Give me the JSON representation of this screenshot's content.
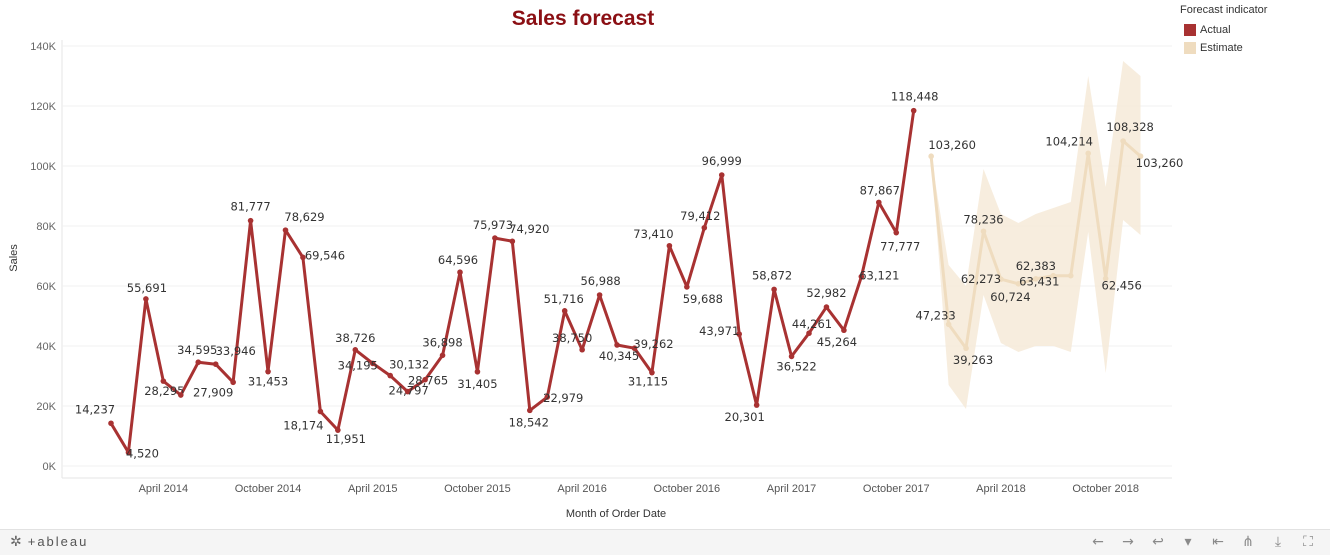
{
  "chart_data": {
    "type": "line",
    "title": "Sales forecast",
    "xlabel": "Month of Order Date",
    "ylabel": "Sales",
    "ylim": [
      0,
      140000
    ],
    "yticks": [
      0,
      20000,
      40000,
      60000,
      80000,
      100000,
      120000,
      140000
    ],
    "ytick_labels": [
      "0K",
      "20K",
      "40K",
      "60K",
      "80K",
      "100K",
      "120K",
      "140K"
    ],
    "xlim": [
      "2013-10",
      "2018-12"
    ],
    "xticks": [
      "2014-04",
      "2014-10",
      "2015-04",
      "2015-10",
      "2016-04",
      "2016-10",
      "2017-04",
      "2017-10",
      "2018-04",
      "2018-10"
    ],
    "xtick_labels": [
      "April 2014",
      "October 2014",
      "April 2015",
      "October 2015",
      "April 2016",
      "October 2016",
      "April 2017",
      "October 2017",
      "April 2018",
      "October 2018"
    ],
    "grid": true,
    "legend": {
      "title": "Forecast indicator",
      "position": "top-right",
      "items": [
        {
          "label": "Actual",
          "color": "#a83232"
        },
        {
          "label": "Estimate",
          "color": "#efdcbf"
        }
      ]
    },
    "series": [
      {
        "name": "Actual",
        "color": "#a83232",
        "points": [
          {
            "x": "2014-01",
            "y": 14237,
            "label": "14,237"
          },
          {
            "x": "2014-02",
            "y": 4520,
            "label": "4,520"
          },
          {
            "x": "2014-03",
            "y": 55691,
            "label": "55,691"
          },
          {
            "x": "2014-04",
            "y": 28295,
            "label": "28,295"
          },
          {
            "x": "2014-05",
            "y": 23648,
            "label": ""
          },
          {
            "x": "2014-06",
            "y": 34595,
            "label": "34,595"
          },
          {
            "x": "2014-07",
            "y": 33946,
            "label": "33,946"
          },
          {
            "x": "2014-08",
            "y": 27909,
            "label": "27,909"
          },
          {
            "x": "2014-09",
            "y": 81777,
            "label": "81,777"
          },
          {
            "x": "2014-10",
            "y": 31453,
            "label": "31,453"
          },
          {
            "x": "2014-11",
            "y": 78629,
            "label": "78,629"
          },
          {
            "x": "2014-12",
            "y": 69546,
            "label": "69,546"
          },
          {
            "x": "2015-01",
            "y": 18174,
            "label": "18,174"
          },
          {
            "x": "2015-02",
            "y": 11951,
            "label": "11,951"
          },
          {
            "x": "2015-03",
            "y": 38726,
            "label": "38,726"
          },
          {
            "x": "2015-04",
            "y": 34195,
            "label": "34,195"
          },
          {
            "x": "2015-05",
            "y": 30132,
            "label": "30,132"
          },
          {
            "x": "2015-06",
            "y": 24797,
            "label": "24,797"
          },
          {
            "x": "2015-07",
            "y": 28765,
            "label": "28,765"
          },
          {
            "x": "2015-08",
            "y": 36898,
            "label": "36,898"
          },
          {
            "x": "2015-09",
            "y": 64596,
            "label": "64,596"
          },
          {
            "x": "2015-10",
            "y": 31405,
            "label": "31,405"
          },
          {
            "x": "2015-11",
            "y": 75973,
            "label": "75,973"
          },
          {
            "x": "2015-12",
            "y": 74920,
            "label": "74,920"
          },
          {
            "x": "2016-01",
            "y": 18542,
            "label": "18,542"
          },
          {
            "x": "2016-02",
            "y": 22979,
            "label": "22,979"
          },
          {
            "x": "2016-03",
            "y": 51716,
            "label": "51,716"
          },
          {
            "x": "2016-04",
            "y": 38750,
            "label": "38,750"
          },
          {
            "x": "2016-05",
            "y": 56988,
            "label": "56,988"
          },
          {
            "x": "2016-06",
            "y": 40345,
            "label": "40,345"
          },
          {
            "x": "2016-07",
            "y": 39262,
            "label": "39,262"
          },
          {
            "x": "2016-08",
            "y": 31115,
            "label": "31,115"
          },
          {
            "x": "2016-09",
            "y": 73410,
            "label": "73,410"
          },
          {
            "x": "2016-10",
            "y": 59688,
            "label": "59,688"
          },
          {
            "x": "2016-11",
            "y": 79412,
            "label": "79,412"
          },
          {
            "x": "2016-12",
            "y": 96999,
            "label": "96,999"
          },
          {
            "x": "2017-01",
            "y": 43971,
            "label": "43,971"
          },
          {
            "x": "2017-02",
            "y": 20301,
            "label": "20,301"
          },
          {
            "x": "2017-03",
            "y": 58872,
            "label": "58,872"
          },
          {
            "x": "2017-04",
            "y": 36522,
            "label": "36,522"
          },
          {
            "x": "2017-05",
            "y": 44261,
            "label": "44,261"
          },
          {
            "x": "2017-06",
            "y": 52982,
            "label": "52,982"
          },
          {
            "x": "2017-07",
            "y": 45264,
            "label": "45,264"
          },
          {
            "x": "2017-08",
            "y": 63121,
            "label": "63,121"
          },
          {
            "x": "2017-09",
            "y": 87867,
            "label": "87,867"
          },
          {
            "x": "2017-10",
            "y": 77777,
            "label": "77,777"
          },
          {
            "x": "2017-11",
            "y": 118448,
            "label": "118,448"
          }
        ]
      },
      {
        "name": "Estimate",
        "color": "#efdcbf",
        "points": [
          {
            "x": "2017-12",
            "y": 103260,
            "label": "103,260",
            "lo": 103260,
            "hi": 103260
          },
          {
            "x": "2018-01",
            "y": 47233,
            "label": "47,233",
            "lo": 27000,
            "hi": 67000
          },
          {
            "x": "2018-02",
            "y": 39263,
            "label": "39,263",
            "lo": 19000,
            "hi": 60000
          },
          {
            "x": "2018-03",
            "y": 78236,
            "label": "78,236",
            "lo": 57000,
            "hi": 99000
          },
          {
            "x": "2018-04",
            "y": 62273,
            "label": "62,273",
            "lo": 41000,
            "hi": 84000
          },
          {
            "x": "2018-05",
            "y": 60724,
            "label": "60,724",
            "lo": 38000,
            "hi": 81000
          },
          {
            "x": "2018-06",
            "y": 62383,
            "label": "62,383",
            "lo": 40000,
            "hi": 84000
          },
          {
            "x": "2018-07",
            "y": 63431,
            "label": "63,431",
            "lo": 40000,
            "hi": 86000
          },
          {
            "x": "2018-08",
            "y": 63431,
            "label": "",
            "lo": 38000,
            "hi": 88000
          },
          {
            "x": "2018-09",
            "y": 104214,
            "label": "104,214",
            "lo": 78000,
            "hi": 130000
          },
          {
            "x": "2018-10",
            "y": 62456,
            "label": "62,456",
            "lo": 31000,
            "hi": 93000
          },
          {
            "x": "2018-11",
            "y": 108328,
            "label": "108,328",
            "lo": 82000,
            "hi": 135000
          },
          {
            "x": "2018-12",
            "y": 103260,
            "label": "103,260",
            "lo": 77000,
            "hi": 130000
          }
        ]
      }
    ]
  },
  "footer": {
    "logo_text": "+ableau",
    "tools": [
      {
        "icon": "undo-icon",
        "glyph": "←"
      },
      {
        "icon": "redo-icon",
        "glyph": "→"
      },
      {
        "icon": "revert-icon",
        "glyph": "↩"
      },
      {
        "icon": "dropdown-icon",
        "glyph": "▾"
      },
      {
        "icon": "first-icon",
        "glyph": "⇤"
      },
      {
        "icon": "share-icon",
        "glyph": "⋔"
      },
      {
        "icon": "download-icon",
        "glyph": "⤓"
      },
      {
        "icon": "fullscreen-icon",
        "glyph": "⛶"
      }
    ]
  }
}
